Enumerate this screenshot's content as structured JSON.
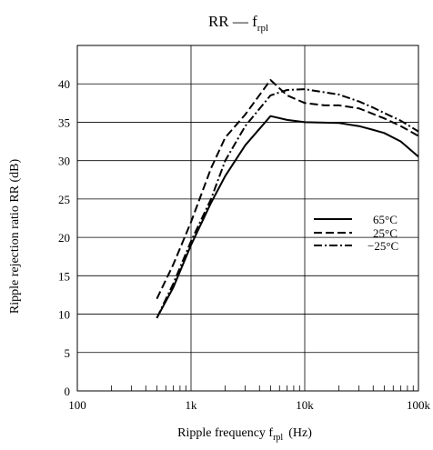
{
  "chart_data": {
    "type": "line",
    "title_main": "RR — f",
    "title_sub": "rpl",
    "xlabel_main": "Ripple frequency  f",
    "xlabel_sub": "rpl",
    "xlabel_unit": "(Hz)",
    "ylabel": "Ripple rejection ratio  RR  (dB)",
    "x_scale": "log",
    "xlim": [
      100,
      100000
    ],
    "ylim": [
      0,
      45
    ],
    "x_ticks": [
      {
        "value": 100,
        "label": "100"
      },
      {
        "value": 1000,
        "label": "1k"
      },
      {
        "value": 10000,
        "label": "10k"
      },
      {
        "value": 100000,
        "label": "100k"
      }
    ],
    "y_ticks": [
      0,
      5,
      10,
      15,
      20,
      25,
      30,
      35,
      40
    ],
    "grid": true,
    "legend_position": "right-middle",
    "series": [
      {
        "name": "65°C",
        "style": "solid",
        "x": [
          500,
          700,
          1000,
          1500,
          2000,
          3000,
          5000,
          7000,
          10000,
          20000,
          30000,
          40000,
          50000,
          70000,
          100000
        ],
        "y": [
          9.5,
          13.5,
          19,
          24.5,
          28,
          32,
          35.8,
          35.3,
          35,
          34.9,
          34.5,
          34,
          33.6,
          32.5,
          30.5
        ]
      },
      {
        "name": "25°C",
        "style": "dashed",
        "x": [
          500,
          700,
          1000,
          1500,
          2000,
          3000,
          5000,
          7000,
          10000,
          15000,
          20000,
          30000,
          50000,
          70000,
          100000
        ],
        "y": [
          12,
          16.5,
          22,
          29,
          33,
          36,
          40.5,
          38.5,
          37.5,
          37.2,
          37.2,
          36.8,
          35.5,
          34.5,
          33.2
        ]
      },
      {
        "name": "−25°C",
        "style": "dashdot",
        "x": [
          500,
          700,
          1000,
          1500,
          2000,
          3000,
          5000,
          7000,
          10000,
          20000,
          30000,
          40000,
          50000,
          70000,
          100000
        ],
        "y": [
          9.5,
          14,
          19.5,
          25,
          30,
          34.5,
          38.5,
          39.2,
          39.3,
          38.6,
          37.7,
          36.9,
          36.2,
          35.2,
          33.8
        ]
      }
    ]
  }
}
